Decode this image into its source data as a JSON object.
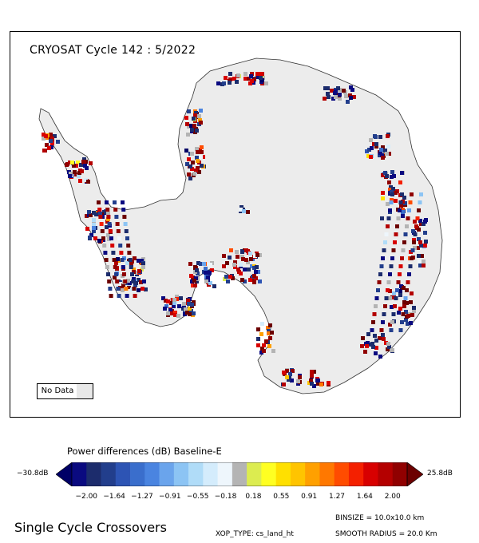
{
  "map": {
    "title": "CRYOSAT Cycle 142 : 5/2022",
    "no_data_label": "No Data",
    "no_data_color": "#e8e8e8",
    "land_color": "#ececec"
  },
  "colorbar": {
    "title": "Power differences (dB) Baseline-E",
    "min_label": "−30.8dB",
    "max_label": "25.8dB",
    "colors": [
      "#000066",
      "#0a0a80",
      "#1c2c6c",
      "#223e8c",
      "#2d54b4",
      "#3a6ecc",
      "#4a84e0",
      "#6aa4ec",
      "#8cc4f4",
      "#b0dcf8",
      "#d4ecfc",
      "#eef6fc",
      "#b4b4b4",
      "#dcec50",
      "#ffff22",
      "#ffe000",
      "#ffc400",
      "#ffa000",
      "#ff7800",
      "#ff4c00",
      "#f42000",
      "#d80000",
      "#b40000",
      "#900000",
      "#6c0000"
    ],
    "tick_labels": [
      "−2.00",
      "−1.64",
      "−1.27",
      "−0.91",
      "−0.55",
      "−0.18",
      "0.18",
      "0.55",
      "0.91",
      "1.27",
      "1.64",
      "2.00"
    ]
  },
  "footer": {
    "left": "Single Cycle Crossovers",
    "xop_type": "XOP_TYPE: cs_land_ht",
    "binsize": "BINSIZE = 10.0x10.0 km",
    "smooth_radius": "SMOOTH RADIUS =  20.0 Km"
  }
}
